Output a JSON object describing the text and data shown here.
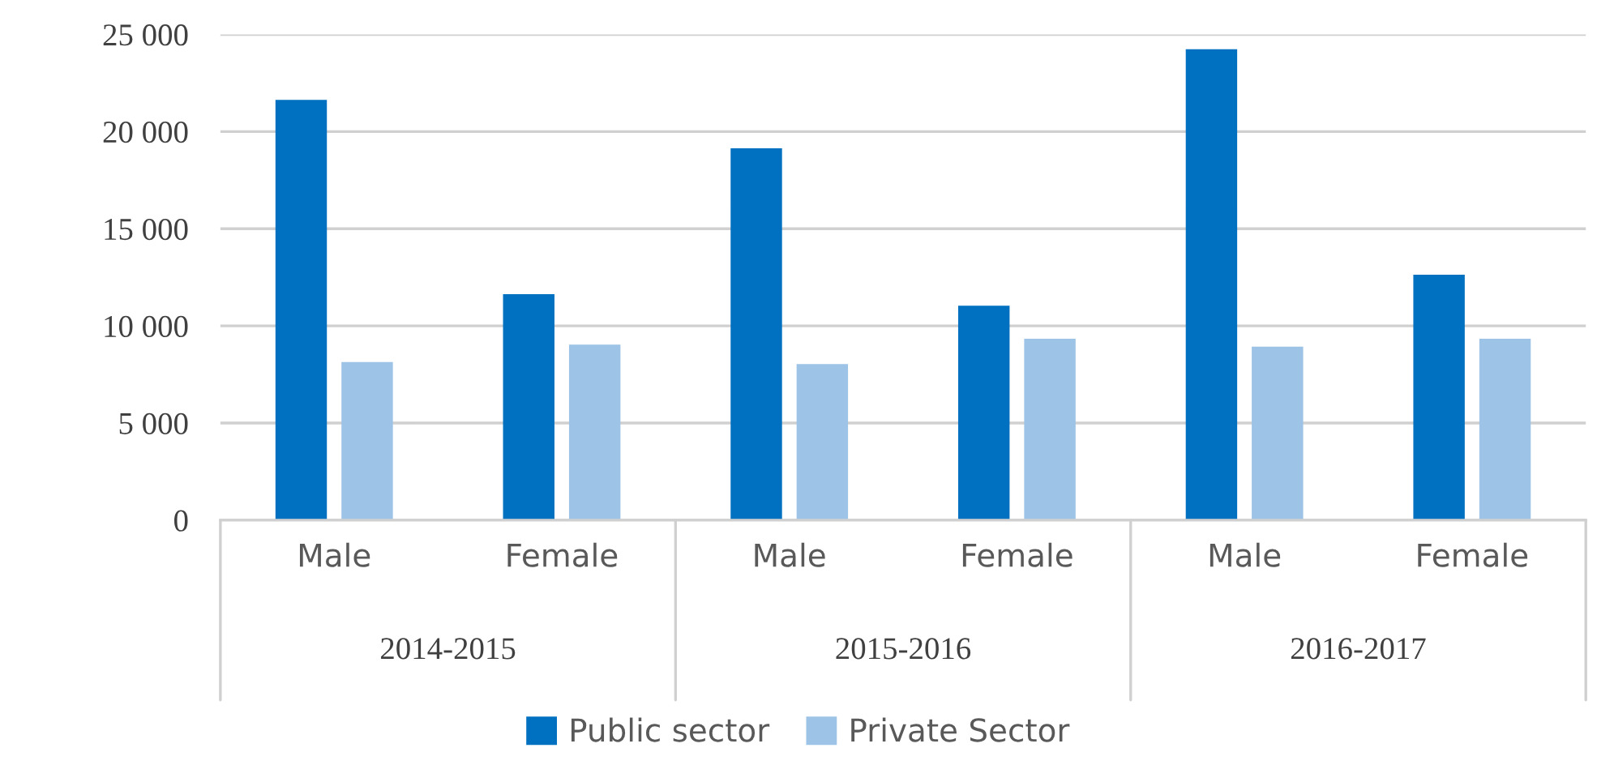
{
  "chart_data": {
    "type": "bar",
    "categories": [
      "Male",
      "Female",
      "Male",
      "Female",
      "Male",
      "Female"
    ],
    "series": [
      {
        "name": "Public sector",
        "color": "#0070c0",
        "values": [
          21600,
          11600,
          19100,
          11000,
          24200,
          12600
        ]
      },
      {
        "name": "Private Sector",
        "color": "#9dc3e6",
        "values": [
          8100,
          9000,
          8000,
          9300,
          8900,
          9300
        ]
      }
    ],
    "annotations": [
      "2014-2015",
      "2015-2016",
      "2016-2017"
    ],
    "ylim": [
      0,
      25000
    ],
    "yticks": [
      {
        "value": 0,
        "label": "0"
      },
      {
        "value": 5000,
        "label": "5 000"
      },
      {
        "value": 10000,
        "label": "10 000"
      },
      {
        "value": 15000,
        "label": "15 000"
      },
      {
        "value": 20000,
        "label": "20 000"
      },
      {
        "value": 25000,
        "label": "25 000"
      }
    ],
    "grid": "y",
    "legend": "bottom"
  }
}
